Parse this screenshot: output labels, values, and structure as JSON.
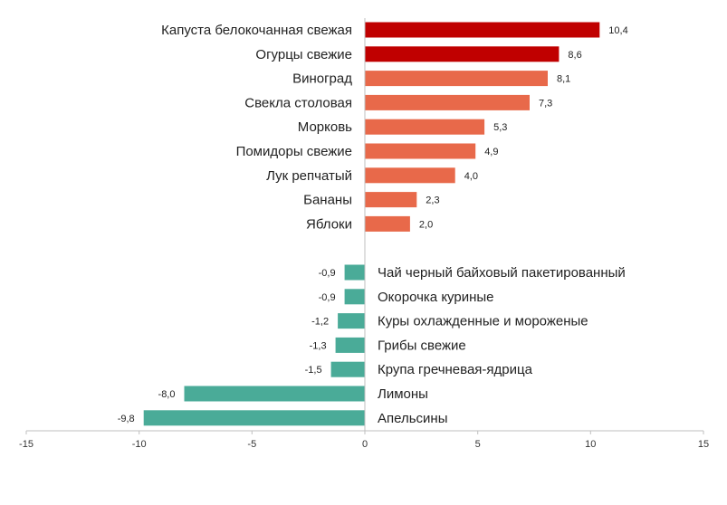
{
  "colors": {
    "top_increase": "#c00000",
    "increase": "#e8694a",
    "decrease": "#4aab98",
    "axis": "#bfbfbf"
  },
  "chart_data": {
    "type": "bar",
    "orientation": "horizontal",
    "title": "",
    "xlabel": "",
    "ylabel": "",
    "xlim": [
      -15,
      15
    ],
    "xticks": [
      -15,
      -10,
      -5,
      0,
      5,
      10,
      15
    ],
    "grid": false,
    "legend": "none",
    "groups": [
      {
        "categories": [
          "Капуста белокочанная свежая",
          "Огурцы свежие",
          "Виноград",
          "Свекла столовая",
          "Морковь",
          "Помидоры свежие",
          "Лук репчатый",
          "Бананы",
          "Яблоки"
        ],
        "values": [
          10.4,
          8.6,
          8.1,
          7.3,
          5.3,
          4.9,
          4.0,
          2.3,
          2.0
        ],
        "value_labels": [
          "10,4",
          "8,6",
          "8,1",
          "7,3",
          "5,3",
          "4,9",
          "4,0",
          "2,3",
          "2,0"
        ],
        "colors": [
          "#c00000",
          "#c00000",
          "#e8694a",
          "#e8694a",
          "#e8694a",
          "#e8694a",
          "#e8694a",
          "#e8694a",
          "#e8694a"
        ]
      },
      {
        "categories": [
          "Чай черный байховый пакетированный",
          "Окорочка куриные",
          "Куры охлажденные и мороженые",
          "Грибы свежие",
          "Крупа гречневая-ядрица",
          "Лимоны",
          "Апельсины"
        ],
        "values": [
          -0.9,
          -0.9,
          -1.2,
          -1.3,
          -1.5,
          -8.0,
          -9.8
        ],
        "value_labels": [
          "-0,9",
          "-0,9",
          "-1,2",
          "-1,3",
          "-1,5",
          "-8,0",
          "-9,8"
        ],
        "colors": [
          "#4aab98",
          "#4aab98",
          "#4aab98",
          "#4aab98",
          "#4aab98",
          "#4aab98",
          "#4aab98"
        ]
      }
    ]
  }
}
